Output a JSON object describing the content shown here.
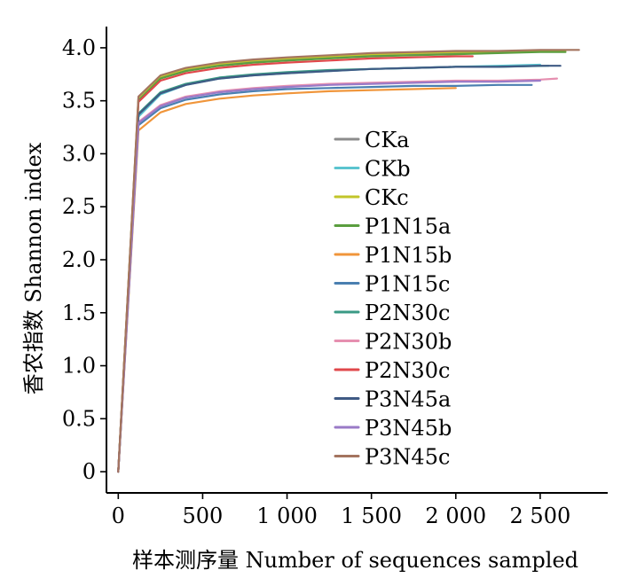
{
  "chart_data": {
    "type": "line",
    "title": "",
    "xlabel": "样本测序量 Number of sequences sampled",
    "ylabel": "香农指数 Shannon index",
    "xlim": [
      -70,
      2900
    ],
    "ylim": [
      -0.2,
      4.2
    ],
    "x_ticks": [
      0,
      500,
      1000,
      1500,
      2000,
      2500
    ],
    "x_tick_labels": [
      "0",
      "500",
      "1 000",
      "1 500",
      "2 000",
      "2 500"
    ],
    "y_ticks": [
      0,
      0.5,
      1.0,
      1.5,
      2.0,
      2.5,
      3.0,
      3.5,
      4.0
    ],
    "y_tick_labels": [
      "0",
      "0.5",
      "1.0",
      "1.5",
      "2.0",
      "2.5",
      "3.0",
      "3.5",
      "4.0"
    ],
    "grid": false,
    "legend_position": "right",
    "series": [
      {
        "name": "CKa",
        "color": "#8c8c8c",
        "x": [
          0,
          120,
          250,
          400,
          600,
          800,
          1000,
          1250,
          1500,
          1750,
          2000,
          2250
        ],
        "y": [
          0,
          3.52,
          3.72,
          3.79,
          3.84,
          3.87,
          3.89,
          3.91,
          3.93,
          3.94,
          3.95,
          3.96
        ]
      },
      {
        "name": "CKb",
        "color": "#5bc4cf",
        "x": [
          0,
          120,
          250,
          400,
          600,
          800,
          1000,
          1250,
          1500,
          1750,
          2000,
          2250,
          2500
        ],
        "y": [
          0,
          3.35,
          3.56,
          3.65,
          3.71,
          3.74,
          3.76,
          3.78,
          3.8,
          3.81,
          3.82,
          3.83,
          3.84
        ]
      },
      {
        "name": "CKc",
        "color": "#c2c52a",
        "x": [
          0,
          120,
          250,
          400,
          600,
          800,
          1000,
          1250,
          1500,
          1750,
          2000,
          2250,
          2500,
          2650
        ],
        "y": [
          0,
          3.53,
          3.73,
          3.8,
          3.85,
          3.88,
          3.9,
          3.92,
          3.94,
          3.95,
          3.96,
          3.96,
          3.97,
          3.97
        ]
      },
      {
        "name": "P1N15a",
        "color": "#5a9e3f",
        "x": [
          0,
          120,
          250,
          400,
          600,
          800,
          1000,
          1250,
          1500,
          1750,
          2000,
          2250,
          2500,
          2650
        ],
        "y": [
          0,
          3.5,
          3.71,
          3.78,
          3.83,
          3.86,
          3.88,
          3.9,
          3.92,
          3.93,
          3.94,
          3.95,
          3.96,
          3.96
        ]
      },
      {
        "name": "P1N15b",
        "color": "#f0953a",
        "x": [
          0,
          120,
          250,
          400,
          600,
          800,
          1000,
          1250,
          1500,
          1750,
          2000
        ],
        "y": [
          0,
          3.22,
          3.39,
          3.47,
          3.52,
          3.55,
          3.57,
          3.59,
          3.6,
          3.61,
          3.62
        ]
      },
      {
        "name": "P1N15c",
        "color": "#4a7fb0",
        "x": [
          0,
          120,
          250,
          400,
          600,
          800,
          1000,
          1250,
          1500,
          1750,
          2000,
          2250,
          2450
        ],
        "y": [
          0,
          3.27,
          3.43,
          3.51,
          3.56,
          3.59,
          3.61,
          3.62,
          3.63,
          3.64,
          3.64,
          3.65,
          3.65
        ]
      },
      {
        "name": "P2N30c",
        "color": "#3a9a85",
        "x": [
          0,
          120,
          250,
          400,
          600,
          800,
          1000,
          1250,
          1500,
          1750,
          2000,
          2250,
          2550
        ],
        "y": [
          0,
          3.38,
          3.58,
          3.66,
          3.72,
          3.75,
          3.77,
          3.79,
          3.8,
          3.81,
          3.82,
          3.82,
          3.83
        ]
      },
      {
        "name": "P2N30b",
        "color": "#e68fb0",
        "x": [
          0,
          120,
          250,
          400,
          600,
          800,
          1000,
          1250,
          1500,
          1750,
          2000,
          2250,
          2500,
          2600
        ],
        "y": [
          0,
          3.3,
          3.46,
          3.54,
          3.59,
          3.62,
          3.64,
          3.66,
          3.67,
          3.68,
          3.69,
          3.69,
          3.7,
          3.71
        ]
      },
      {
        "name": "P2N30c",
        "color": "#e0484b",
        "x": [
          0,
          120,
          250,
          400,
          600,
          800,
          1000,
          1250,
          1500,
          1750,
          2000,
          2100
        ],
        "y": [
          0,
          3.49,
          3.69,
          3.76,
          3.81,
          3.84,
          3.86,
          3.88,
          3.9,
          3.91,
          3.92,
          3.92
        ]
      },
      {
        "name": "P3N45a",
        "color": "#3f5a84",
        "x": [
          0,
          120,
          250,
          400,
          600,
          800,
          1000,
          1250,
          1500,
          1750,
          2000,
          2250,
          2500,
          2620
        ],
        "y": [
          0,
          3.37,
          3.57,
          3.65,
          3.71,
          3.74,
          3.76,
          3.78,
          3.8,
          3.81,
          3.82,
          3.82,
          3.83,
          3.83
        ]
      },
      {
        "name": "P3N45b",
        "color": "#9a7ac7",
        "x": [
          0,
          120,
          250,
          400,
          600,
          800,
          1000,
          1250,
          1500,
          1750,
          2000,
          2250,
          2500
        ],
        "y": [
          0,
          3.29,
          3.45,
          3.53,
          3.58,
          3.61,
          3.63,
          3.65,
          3.66,
          3.67,
          3.68,
          3.68,
          3.69
        ]
      },
      {
        "name": "P3N45c",
        "color": "#a4745f",
        "x": [
          0,
          120,
          250,
          400,
          600,
          800,
          1000,
          1250,
          1500,
          1750,
          2000,
          2250,
          2500,
          2730
        ],
        "y": [
          0,
          3.54,
          3.74,
          3.81,
          3.86,
          3.89,
          3.91,
          3.93,
          3.95,
          3.96,
          3.97,
          3.97,
          3.98,
          3.98
        ]
      }
    ]
  }
}
